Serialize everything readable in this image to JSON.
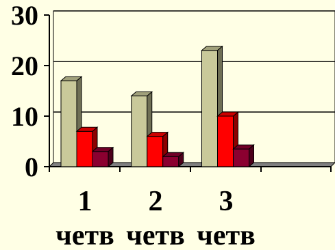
{
  "chart_data": {
    "type": "bar",
    "three_d": true,
    "categories": [
      {
        "number": "1",
        "label": "четв"
      },
      {
        "number": "2",
        "label": "четв"
      },
      {
        "number": "3",
        "label": "четв"
      },
      {
        "number": "",
        "label": ""
      }
    ],
    "series": [
      {
        "values": [
          17,
          14,
          23,
          0
        ],
        "color": "#c9c99a"
      },
      {
        "values": [
          7,
          6,
          10,
          0
        ],
        "color": "#ff0000"
      },
      {
        "values": [
          3,
          2,
          3.5,
          0
        ],
        "color": "#8b0030"
      }
    ],
    "y_ticks": [
      "0",
      "10",
      "20",
      "30"
    ],
    "ylim": [
      0,
      30
    ],
    "grid": true,
    "legend": "none",
    "colors": {
      "background": "#ffffe5",
      "plot_area": "#ffffe5",
      "floor": "#808080",
      "gridline": "#000000"
    }
  }
}
